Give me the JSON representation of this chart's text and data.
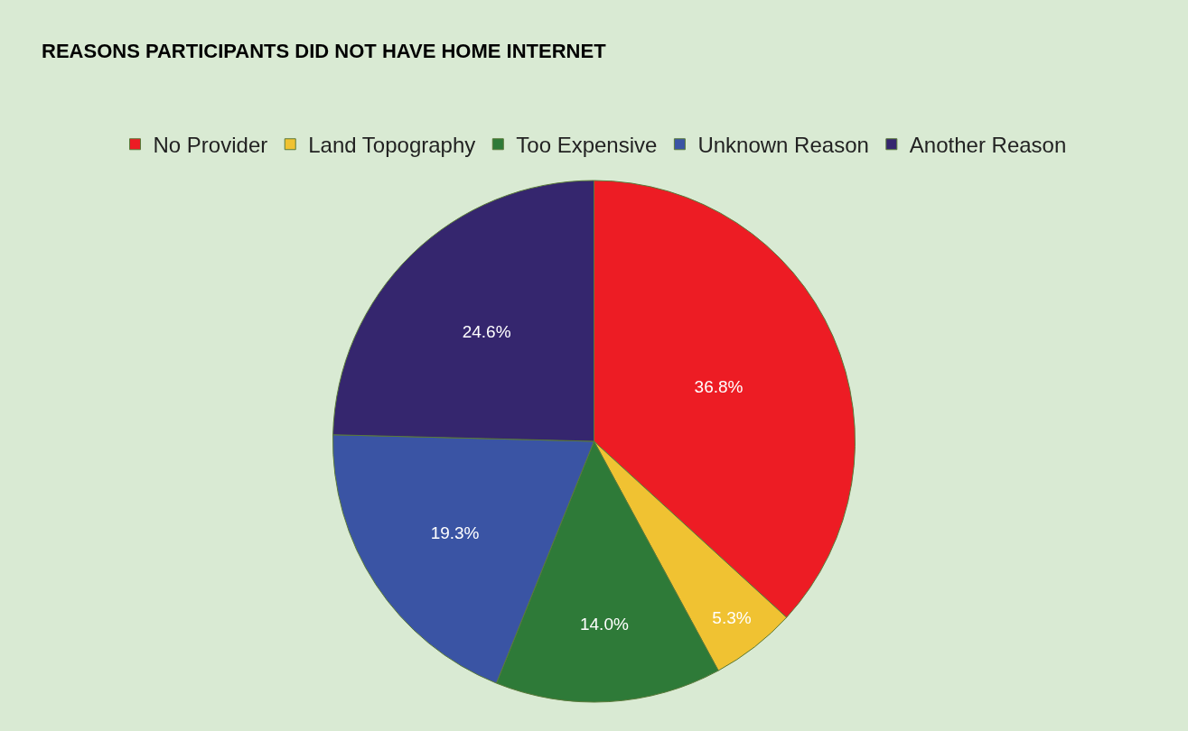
{
  "chart_data": {
    "type": "pie",
    "title": "REASONS PARTICIPANTS DID NOT HAVE HOME INTERNET",
    "categories": [
      "No Provider",
      "Land Topography",
      "Too Expensive",
      "Unknown Reason",
      "Another Reason"
    ],
    "values": [
      36.8,
      5.3,
      14.0,
      19.3,
      24.6
    ],
    "colors": [
      "#ed1c24",
      "#f0c232",
      "#2e7a38",
      "#3a54a4",
      "#35266e"
    ],
    "value_labels": [
      "36.8%",
      "5.3%",
      "14.0%",
      "19.3%",
      "24.6%"
    ],
    "legend": "top"
  }
}
